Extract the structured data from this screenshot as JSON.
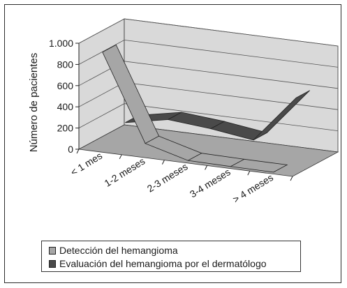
{
  "chart_data": {
    "type": "line",
    "style": "3d-ribbon",
    "ylabel": "Número de pacientes",
    "xlabel": "",
    "ylim": [
      0,
      1000
    ],
    "yticks": [
      0,
      200,
      400,
      600,
      800,
      1000
    ],
    "ytick_labels": [
      "0",
      "200",
      "400",
      "600",
      "800",
      "1.000"
    ],
    "categories": [
      "< 1 mes",
      "1-2 meses",
      "2-3 meses",
      "3-4 meses",
      "> 4 meses"
    ],
    "series": [
      {
        "name": "Detección del hemangioma",
        "color": "#a6a6a6",
        "values": [
          930,
          120,
          10,
          5,
          3
        ]
      },
      {
        "name": "Evaluación del hemangioma por el dermatólogo",
        "color": "#4a4a4a",
        "values": [
          150,
          230,
          195,
          140,
          590
        ]
      }
    ],
    "grid": true,
    "legend_position": "bottom"
  },
  "colors": {
    "wall": "#d9d9d9",
    "floor": "#a6a6a6",
    "gridline": "#555555"
  }
}
